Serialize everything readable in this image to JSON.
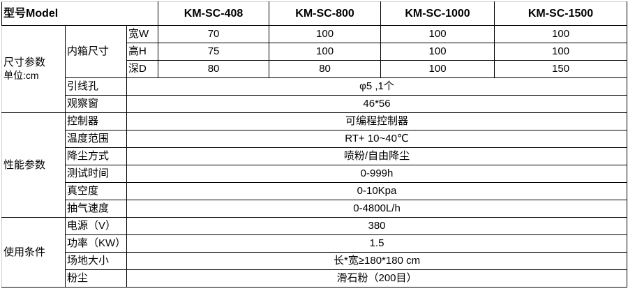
{
  "header": {
    "label": "型号Model",
    "models": [
      "KM-SC-408",
      "KM-SC-800",
      "KM-SC-1000",
      "KM-SC-1500"
    ]
  },
  "size_group": {
    "label": "尺寸参数",
    "unit": "单位:cm",
    "inner_label": "内箱尺寸",
    "dims": [
      {
        "label": "宽W",
        "values": [
          "70",
          "100",
          "100",
          "100"
        ]
      },
      {
        "label": "高H",
        "values": [
          "75",
          "100",
          "100",
          "100"
        ]
      },
      {
        "label": "深D",
        "values": [
          "80",
          "80",
          "100",
          "150"
        ]
      }
    ],
    "rows": [
      {
        "label": "引线孔",
        "value": "φ5 ,1个"
      },
      {
        "label": "观察窗",
        "value": "46*56"
      }
    ]
  },
  "perf_group": {
    "label": "性能参数",
    "rows": [
      {
        "label": "控制器",
        "value": "可编程控制器"
      },
      {
        "label": "温度范围",
        "value": "RT+ 10~40℃"
      },
      {
        "label": "降尘方式",
        "value": "喷粉/自由降尘"
      },
      {
        "label": "测试时间",
        "value": "0-999h"
      },
      {
        "label": "真空度",
        "value": "0-10Kpa"
      },
      {
        "label": "抽气速度",
        "value": "0-4800L/h"
      }
    ]
  },
  "use_group": {
    "label": "使用条件",
    "rows": [
      {
        "label": "电源（V）",
        "value": "380"
      },
      {
        "label": "功率（KW）",
        "value": "1.5"
      },
      {
        "label": "场地大小",
        "value": "长*宽≥180*180 cm"
      },
      {
        "label": "粉尘",
        "value": "滑石粉（200目）"
      }
    ]
  }
}
